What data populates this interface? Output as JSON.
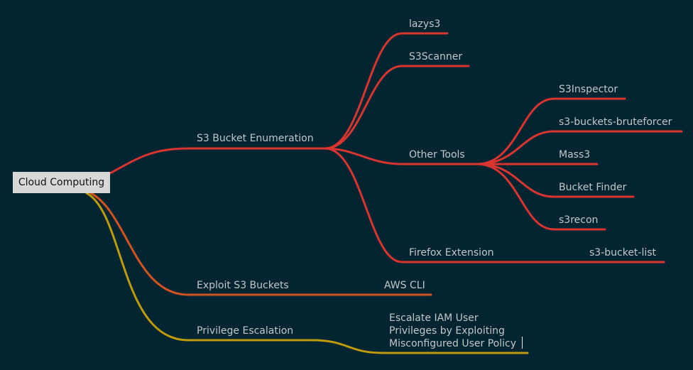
{
  "root": {
    "label": "Cloud Computing"
  },
  "colors": {
    "background": "#022531",
    "red_branch": "#d9342f",
    "orange_branch": "#d4521f",
    "olive_branch": "#bf9a0a",
    "node_text": "#c2c7c9",
    "root_fill": "#d8d8d8"
  },
  "branches": {
    "s3_enum": {
      "label": "S3 Bucket Enumeration",
      "children": {
        "lazys3": "lazys3",
        "s3scanner": "S3Scanner",
        "other_tools": {
          "label": "Other Tools",
          "children": {
            "s3inspector": "S3Inspector",
            "bruteforcer": "s3-buckets-bruteforcer",
            "mass3": "Mass3",
            "bucket_finder": "Bucket Finder",
            "s3recon": "s3recon"
          }
        },
        "firefox_ext": {
          "label": "Firefox Extension",
          "child": "s3-bucket-list"
        }
      }
    },
    "exploit": {
      "label": "Exploit S3 Buckets",
      "child": "AWS CLI"
    },
    "privesc": {
      "label": "Privilege Escalation",
      "child_lines": [
        "Escalate IAM User",
        "Privileges by Exploiting",
        "Misconfigured User Policy"
      ]
    }
  }
}
